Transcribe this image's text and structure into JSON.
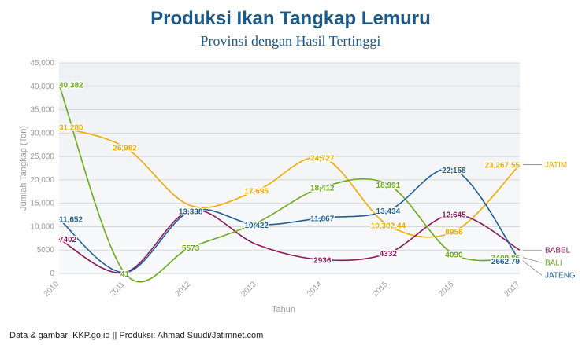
{
  "title": "Produksi Ikan Tangkap Lemuru",
  "subtitle": "Provinsi dengan Hasil Tertinggi",
  "footer": "Data & gambar: KKP.go.id || Produksi: Ahmad Suudi/Jatimnet.com",
  "chart_data": {
    "type": "line",
    "title": "Produksi Ikan Tangkap Lemuru",
    "subtitle": "Provinsi dengan Hasil Tertinggi",
    "xlabel": "Tahun",
    "ylabel": "Jumlah Tangkap (Ton)",
    "x": [
      "2010",
      "2011",
      "2012",
      "2013",
      "2014",
      "2015",
      "2016",
      "2017"
    ],
    "ylim": [
      0,
      45000
    ],
    "yticks": [
      0,
      5000,
      10000,
      15000,
      20000,
      25000,
      30000,
      35000,
      40000,
      45000
    ],
    "ytick_labels": [
      "0",
      "5000",
      "10,000",
      "15,000",
      "20,000",
      "25,000",
      "30,000",
      "35,000",
      "40,000",
      "45,000"
    ],
    "grid": true,
    "legend": "right, end of lines",
    "series": [
      {
        "name": "JATIM",
        "color": "#f2a900",
        "values": [
          31280,
          26982,
          14500,
          17695,
          24727,
          10302.44,
          8956,
          23267.55
        ],
        "labels": [
          "31,280",
          "26,982",
          "",
          "17,695",
          "24,727",
          "10,302.44",
          "8956",
          "23,267.55"
        ]
      },
      {
        "name": "BABEL",
        "color": "#8b1a5e",
        "values": [
          7402,
          200,
          13500,
          6200,
          2936,
          4332,
          12645,
          5000
        ],
        "labels": [
          "7402",
          "",
          "",
          "",
          "2936",
          "4332",
          "12,645",
          ""
        ]
      },
      {
        "name": "BALI",
        "color": "#6aaa1a",
        "values": [
          40382,
          41,
          5573,
          10800,
          18412,
          18991,
          4090,
          3409.86
        ],
        "labels": [
          "40,382",
          "41",
          "5573",
          "",
          "18,412",
          "18,991",
          "4090",
          "3409.86"
        ]
      },
      {
        "name": "JATENG",
        "color": "#1f5f99",
        "values": [
          11652,
          200,
          13338,
          10422,
          11867,
          13434,
          22158,
          2662.79
        ],
        "labels": [
          "11,652",
          "",
          "13,338",
          "10,422",
          "11,867",
          "13,434",
          "22,158",
          "2662.79"
        ]
      }
    ]
  }
}
